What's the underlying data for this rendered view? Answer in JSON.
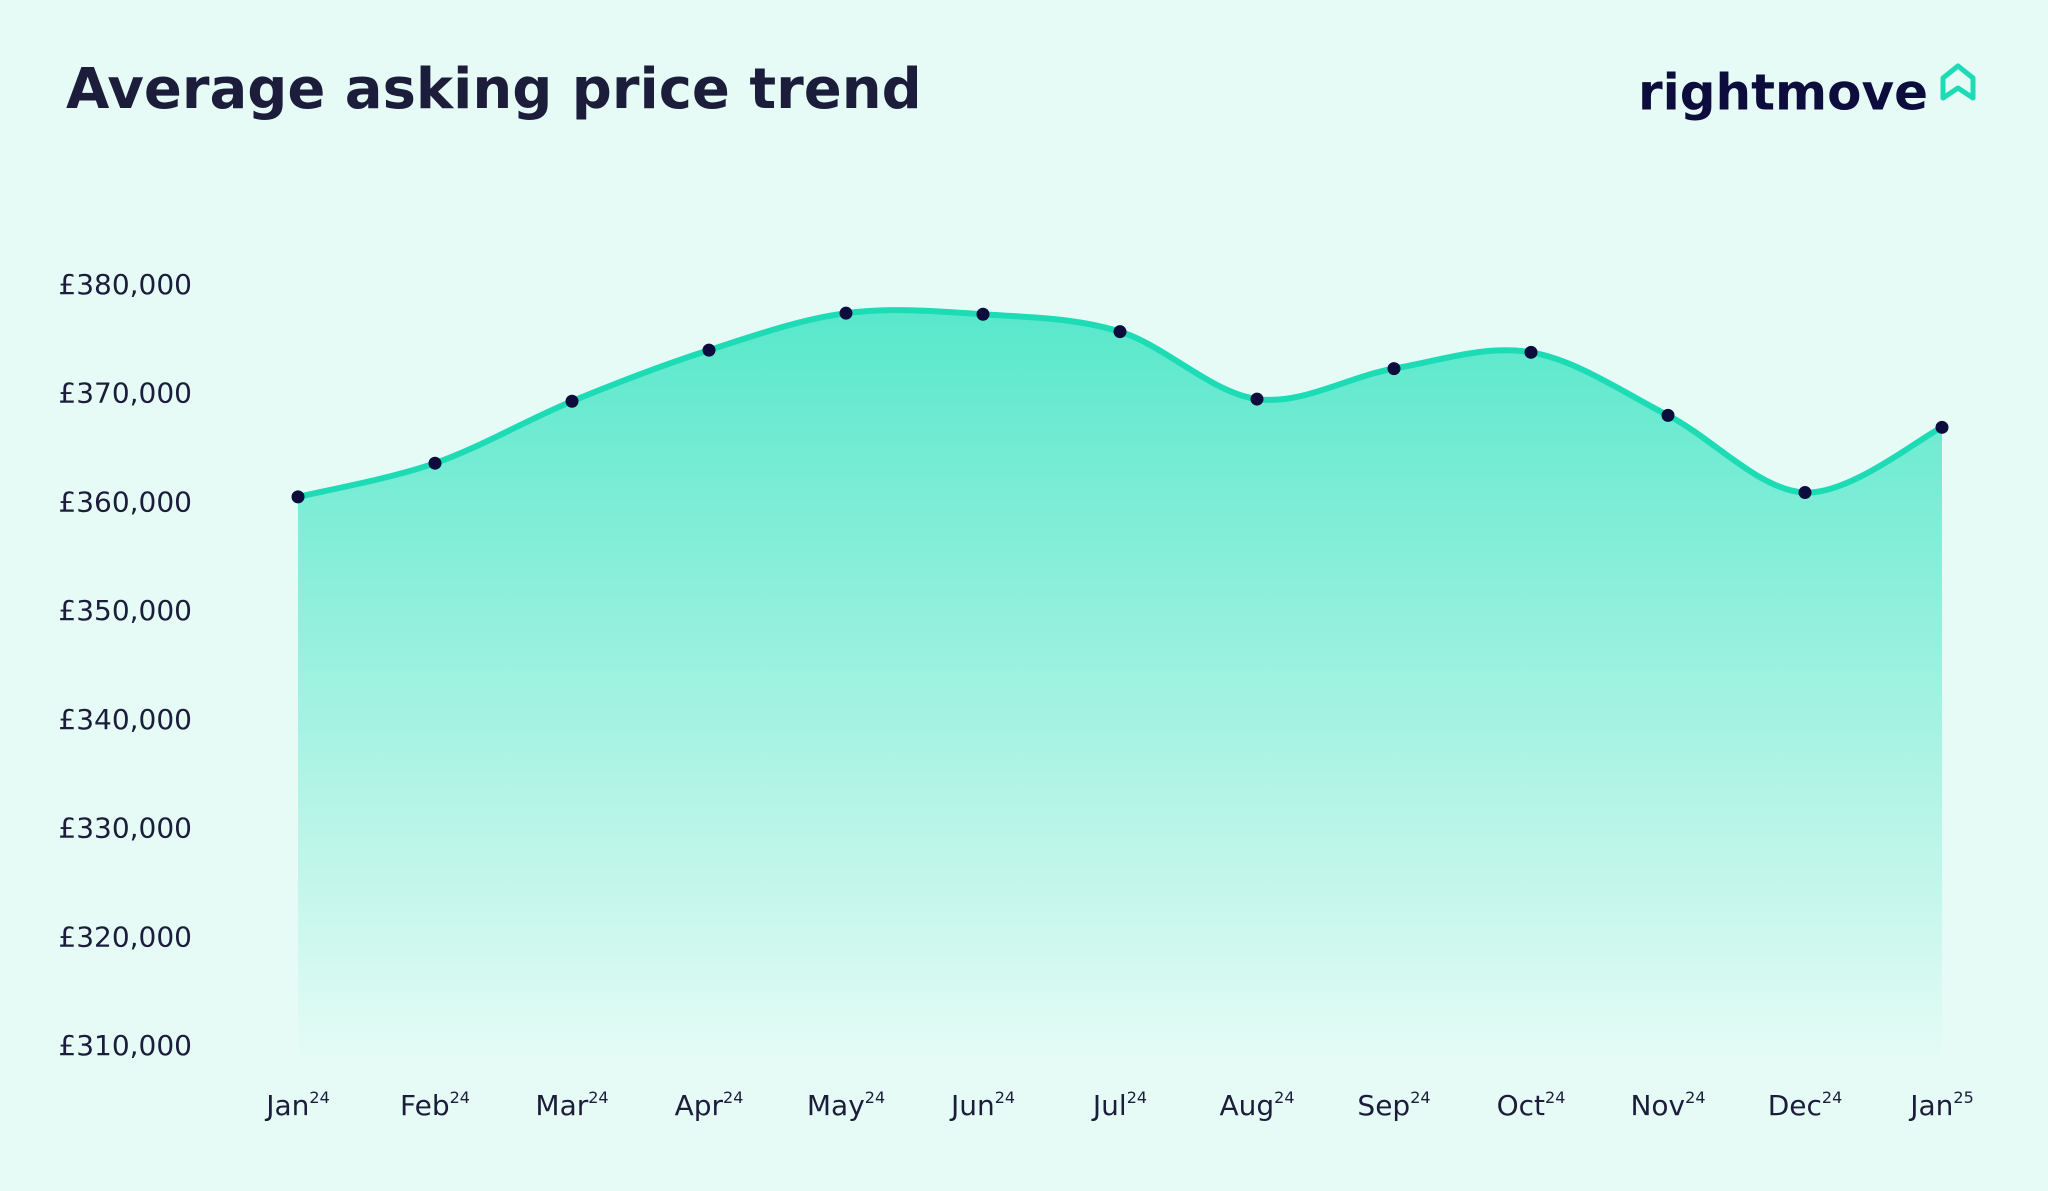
{
  "chart_data": {
    "type": "area",
    "title": "Average asking price trend",
    "logo": "rightmove",
    "categories": [
      {
        "label": "Jan",
        "sup": "24"
      },
      {
        "label": "Feb",
        "sup": "24"
      },
      {
        "label": "Mar",
        "sup": "24"
      },
      {
        "label": "Apr",
        "sup": "24"
      },
      {
        "label": "May",
        "sup": "24"
      },
      {
        "label": "Jun",
        "sup": "24"
      },
      {
        "label": "Jul",
        "sup": "24"
      },
      {
        "label": "Aug",
        "sup": "24"
      },
      {
        "label": "Sep",
        "sup": "24"
      },
      {
        "label": "Oct",
        "sup": "24"
      },
      {
        "label": "Nov",
        "sup": "24"
      },
      {
        "label": "Dec",
        "sup": "24"
      },
      {
        "label": "Jan",
        "sup": "25"
      }
    ],
    "values": [
      360600,
      363700,
      369400,
      374100,
      377500,
      377400,
      375800,
      369600,
      372400,
      373900,
      368100,
      361000,
      367000
    ],
    "color": "#1ddbb5",
    "marker_color": "#0c0d3c",
    "ylim": [
      310000,
      380000
    ],
    "yticks": [
      {
        "value": 310000,
        "label": "£310,000"
      },
      {
        "value": 320000,
        "label": "£320,000"
      },
      {
        "value": 330000,
        "label": "£330,000"
      },
      {
        "value": 340000,
        "label": "£340,000"
      },
      {
        "value": 350000,
        "label": "£350,000"
      },
      {
        "value": 360000,
        "label": "£360,000"
      },
      {
        "value": 370000,
        "label": "£370,000"
      },
      {
        "value": 380000,
        "label": "£380,000"
      }
    ]
  }
}
